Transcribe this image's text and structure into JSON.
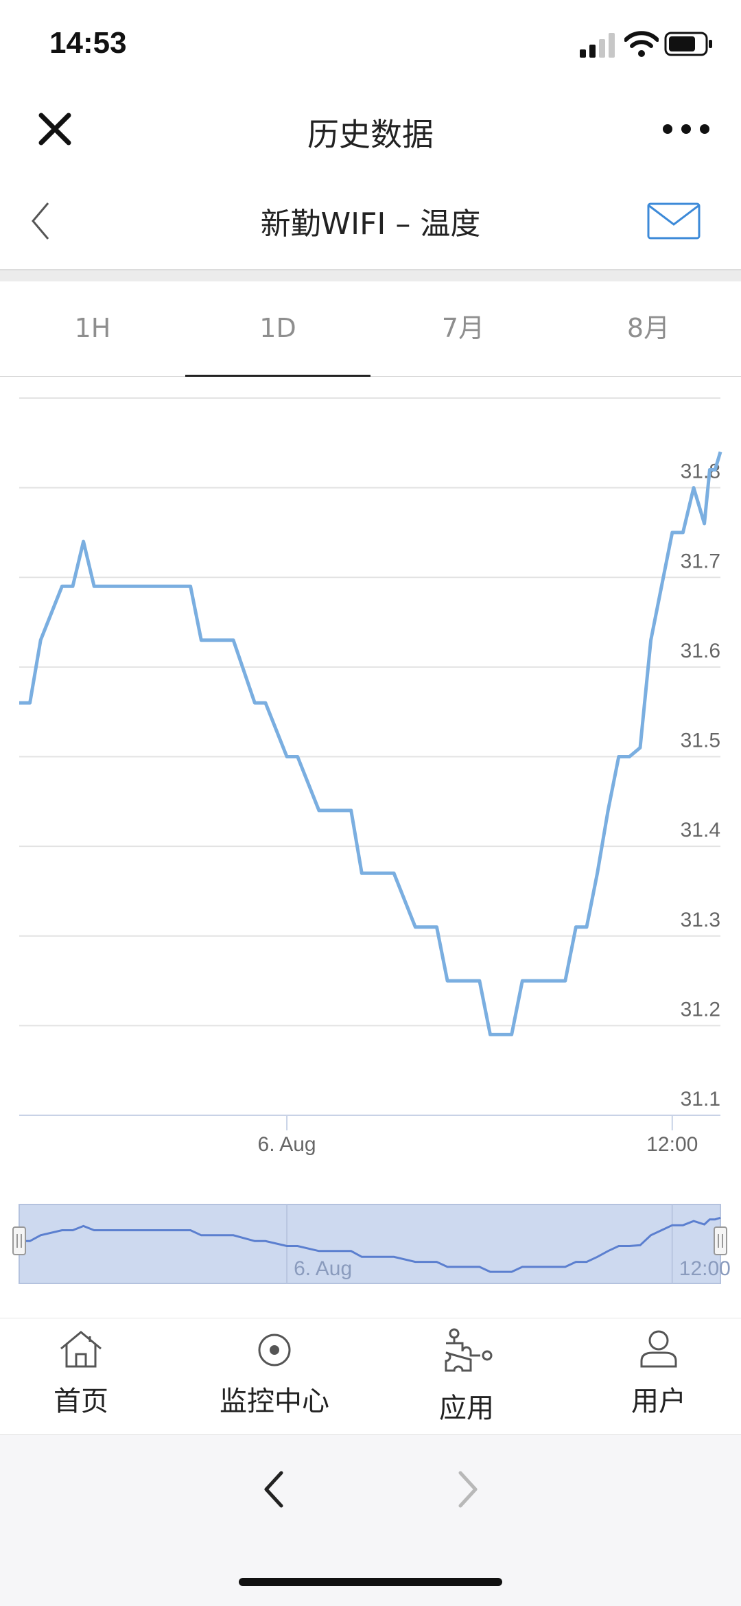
{
  "status_bar": {
    "time": "14:53"
  },
  "nav": {
    "title": "历史数据"
  },
  "sub_header": {
    "title": "新勤WIFI – 温度"
  },
  "tabs": [
    {
      "label": "1H",
      "active": false
    },
    {
      "label": "1D",
      "active": true
    },
    {
      "label": "7月",
      "active": false
    },
    {
      "label": "8月",
      "active": false
    }
  ],
  "chart_data": {
    "type": "line",
    "title": "",
    "xlabel": "",
    "ylabel": "",
    "x_ticks": [
      "6. Aug",
      "12:00"
    ],
    "y_ticks": [
      31.1,
      31.2,
      31.3,
      31.4,
      31.5,
      31.6,
      31.7,
      31.8
    ],
    "ylim": [
      31.1,
      31.9
    ],
    "grid": true,
    "line_color": "#7aaee0",
    "series": [
      {
        "x": [
          "5 Aug 15:40",
          "5 Aug 16:00",
          "5 Aug 16:20",
          "5 Aug 17:00",
          "5 Aug 17:20",
          "5 Aug 17:40",
          "5 Aug 18:00",
          "5 Aug 18:20",
          "5 Aug 19:00",
          "5 Aug 20:00",
          "5 Aug 21:00",
          "5 Aug 21:20",
          "5 Aug 22:00",
          "5 Aug 22:20",
          "5 Aug 23:00",
          "5 Aug 23:20",
          "6 Aug 00:00",
          "6 Aug 00:20",
          "6 Aug 01:00",
          "6 Aug 01:20",
          "6 Aug 02:00",
          "6 Aug 02:20",
          "6 Aug 03:00",
          "6 Aug 03:20",
          "6 Aug 04:00",
          "6 Aug 04:40",
          "6 Aug 05:00",
          "6 Aug 05:20",
          "6 Aug 06:00",
          "6 Aug 06:20",
          "6 Aug 07:00",
          "6 Aug 07:20",
          "6 Aug 08:00",
          "6 Aug 08:40",
          "6 Aug 09:00",
          "6 Aug 09:20",
          "6 Aug 09:40",
          "6 Aug 10:00",
          "6 Aug 10:20",
          "6 Aug 10:40",
          "6 Aug 11:00",
          "6 Aug 11:20",
          "6 Aug 11:40",
          "6 Aug 12:00",
          "6 Aug 12:20",
          "6 Aug 12:40",
          "6 Aug 13:00",
          "6 Aug 13:10",
          "6 Aug 13:20",
          "6 Aug 13:30"
        ],
        "y": [
          31.56,
          31.56,
          31.63,
          31.69,
          31.69,
          31.74,
          31.69,
          31.69,
          31.69,
          31.69,
          31.69,
          31.63,
          31.63,
          31.63,
          31.56,
          31.56,
          31.5,
          31.5,
          31.44,
          31.44,
          31.44,
          31.37,
          31.37,
          31.37,
          31.31,
          31.31,
          31.25,
          31.25,
          31.25,
          31.19,
          31.19,
          31.25,
          31.25,
          31.25,
          31.31,
          31.31,
          31.37,
          31.44,
          31.5,
          31.5,
          31.51,
          31.63,
          31.69,
          31.75,
          31.75,
          31.8,
          31.76,
          31.82,
          31.82,
          31.84
        ]
      }
    ],
    "navigator": {
      "labels": [
        "6. Aug",
        "12:00"
      ]
    }
  },
  "bottom_nav": {
    "items": [
      {
        "label": "首页",
        "icon": "home-icon"
      },
      {
        "label": "监控中心",
        "icon": "monitor-icon"
      },
      {
        "label": "应用",
        "icon": "apps-icon"
      },
      {
        "label": "用户",
        "icon": "user-icon"
      }
    ]
  }
}
